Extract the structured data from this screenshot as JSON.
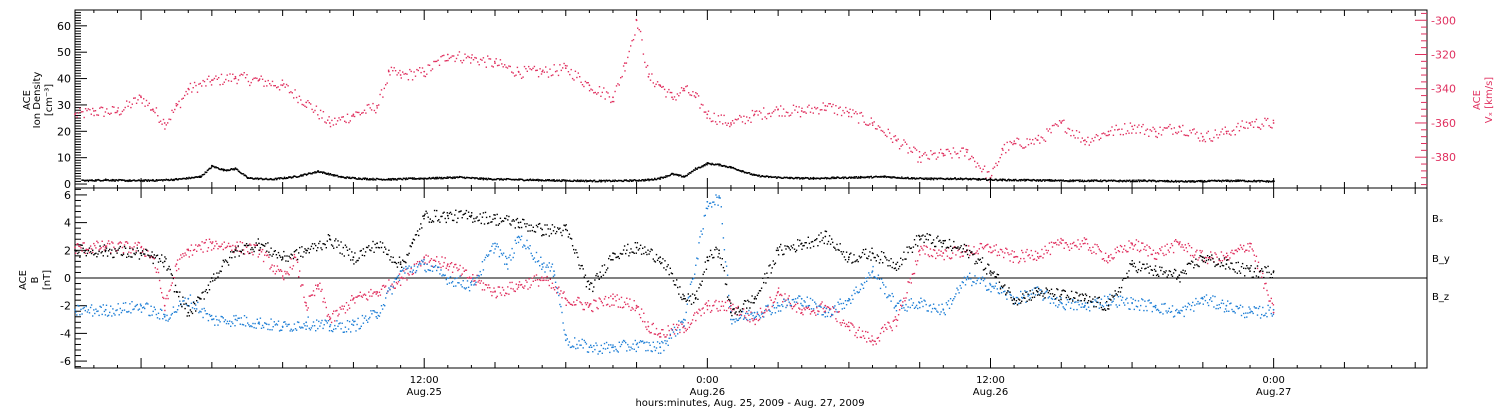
{
  "colors": {
    "black": "#000000",
    "red": "#e0305f",
    "blue": "#1f7fd6"
  },
  "xlabel": "hours:minutes, Aug. 25, 2009 - Aug. 27, 2009",
  "x_ticks": [
    {
      "hour": 12,
      "label1": "12:00",
      "label2": "Aug.25"
    },
    {
      "hour": 24,
      "label1": "0:00",
      "label2": "Aug.26"
    },
    {
      "hour": 36,
      "label1": "12:00",
      "label2": "Aug.26"
    },
    {
      "hour": 48,
      "label1": "0:00",
      "label2": "Aug.27"
    }
  ],
  "chart_data": [
    {
      "type": "scatter",
      "panel": "top",
      "xlim": [
        -2.8,
        54.5
      ],
      "ylim": [
        -1.5,
        66
      ],
      "ylim_right": [
        -398,
        -294
      ],
      "yticks_left": [
        0,
        10,
        20,
        30,
        40,
        50,
        60
      ],
      "yticks_right": [
        -380,
        -360,
        -340,
        -320,
        -300
      ],
      "ylabel_left": {
        "line1": "ACE",
        "line2": "Ion Density",
        "line3": "[cm⁻³]"
      },
      "ylabel_right": {
        "line1": "ACE",
        "line2": "Vₓ [km/s]"
      },
      "series": [
        {
          "name": "Ion Density",
          "color_key": "black",
          "axis": "left",
          "x": [
            -2.5,
            -1.5,
            -0.5,
            0.5,
            1.5,
            2.5,
            3.0,
            3.5,
            4.0,
            4.5,
            5.5,
            6.5,
            7.5,
            8.5,
            9.5,
            10.5,
            11.5,
            12.5,
            13.5,
            14.5,
            15.5,
            16.5,
            17.5,
            18.5,
            19.5,
            20.5,
            21.5,
            22.0,
            22.5,
            23.0,
            23.5,
            24.0,
            24.5,
            25.0,
            25.5,
            26.0,
            26.5,
            27.5,
            28.5,
            29.5,
            30.5,
            31.5,
            32.5,
            33.5,
            34.5,
            35.5,
            36.5,
            37.5,
            38.5,
            39.5,
            40.5,
            41.5,
            42.5,
            43.5,
            44.5,
            45.5,
            46.5,
            47.5,
            48.0
          ],
          "y": [
            1.5,
            1.8,
            1.5,
            1.6,
            2.0,
            3.0,
            7.0,
            5.5,
            6.0,
            2.5,
            2.0,
            3.0,
            5.0,
            2.8,
            2.2,
            2.0,
            2.3,
            2.5,
            2.8,
            2.2,
            2.0,
            1.8,
            1.6,
            1.5,
            1.4,
            1.5,
            1.8,
            2.5,
            4.0,
            3.0,
            6.0,
            8.0,
            7.5,
            6.5,
            5.0,
            3.5,
            3.0,
            2.5,
            2.4,
            2.6,
            2.8,
            3.0,
            2.5,
            2.2,
            2.3,
            2.0,
            1.8,
            1.7,
            1.6,
            1.5,
            1.5,
            1.4,
            1.5,
            1.3,
            1.2,
            1.4,
            1.5,
            1.3,
            1.2
          ]
        },
        {
          "name": "Vx",
          "color_key": "red",
          "axis": "right",
          "x": [
            -2.8,
            -2.0,
            -1.0,
            0.0,
            0.5,
            1.0,
            1.5,
            2.0,
            3.0,
            4.0,
            5.0,
            6.0,
            7.0,
            8.0,
            9.0,
            10.0,
            10.5,
            11.0,
            12.0,
            13.0,
            14.0,
            15.0,
            16.0,
            17.0,
            18.0,
            19.0,
            20.0,
            20.5,
            21.0,
            21.5,
            22.0,
            22.5,
            23.0,
            23.5,
            24.0,
            25.0,
            26.0,
            27.0,
            28.0,
            29.0,
            30.0,
            31.0,
            32.0,
            33.0,
            34.0,
            35.0,
            36.0,
            36.5,
            37.0,
            38.0,
            39.0,
            40.0,
            41.0,
            42.0,
            43.0,
            44.0,
            45.0,
            46.0,
            47.0,
            48.0
          ],
          "y": [
            -355,
            -353,
            -353,
            -345,
            -352,
            -360,
            -350,
            -340,
            -335,
            -333,
            -335,
            -338,
            -348,
            -360,
            -355,
            -350,
            -330,
            -332,
            -330,
            -320,
            -322,
            -325,
            -330,
            -330,
            -328,
            -338,
            -345,
            -325,
            -300,
            -333,
            -338,
            -345,
            -340,
            -345,
            -355,
            -360,
            -355,
            -352,
            -353,
            -350,
            -354,
            -360,
            -370,
            -380,
            -378,
            -377,
            -392,
            -375,
            -372,
            -370,
            -360,
            -370,
            -365,
            -362,
            -365,
            -362,
            -368,
            -365,
            -360,
            -360
          ]
        }
      ]
    },
    {
      "type": "scatter",
      "panel": "bottom",
      "xlim": [
        -2.8,
        54.5
      ],
      "ylim": [
        -6.5,
        6.5
      ],
      "yticks": [
        -6,
        -4,
        -2,
        0,
        2,
        4,
        6
      ],
      "zero_line": true,
      "ylabel": {
        "line1": "ACE",
        "line2": "B",
        "line3": "[nT]"
      },
      "series": [
        {
          "name": "Bₓ",
          "color_key": "black",
          "x": [
            -2.8,
            -1.5,
            0.0,
            0.5,
            1.0,
            1.5,
            2.0,
            2.5,
            3.0,
            4.0,
            5.0,
            6.0,
            7.0,
            8.0,
            9.0,
            10.0,
            11.0,
            11.5,
            12.0,
            13.0,
            14.0,
            15.0,
            16.0,
            17.0,
            18.0,
            19.0,
            20.0,
            21.0,
            22.0,
            23.0,
            23.5,
            24.0,
            24.5,
            25.0,
            26.0,
            27.0,
            28.0,
            29.0,
            30.0,
            31.0,
            32.0,
            33.0,
            34.0,
            35.0,
            36.0,
            37.0,
            38.0,
            39.0,
            40.0,
            41.0,
            42.0,
            43.0,
            44.0,
            45.0,
            46.0,
            47.0,
            48.0
          ],
          "y": [
            2.0,
            2.0,
            1.8,
            1.5,
            1.2,
            -1.0,
            -2.5,
            -1.5,
            0.0,
            2.0,
            2.5,
            1.5,
            2.0,
            2.8,
            1.5,
            2.5,
            1.0,
            2.5,
            4.5,
            4.5,
            4.5,
            4.3,
            4.0,
            3.5,
            3.5,
            -0.8,
            1.8,
            2.2,
            1.5,
            -1.5,
            -1.5,
            1.5,
            2.0,
            -2.5,
            -1.5,
            2.0,
            2.5,
            3.0,
            1.5,
            1.8,
            1.0,
            3.0,
            2.5,
            2.0,
            0.5,
            -1.5,
            -1.0,
            -1.2,
            -1.5,
            -2.0,
            1.0,
            0.5,
            0.2,
            1.5,
            1.0,
            0.5,
            0.5
          ]
        },
        {
          "name": "B_y",
          "color_key": "blue",
          "x": [
            -2.8,
            -1.5,
            0.0,
            1.0,
            2.0,
            3.0,
            4.0,
            5.0,
            6.0,
            7.0,
            8.0,
            9.0,
            10.0,
            11.0,
            12.0,
            13.0,
            14.0,
            15.0,
            15.5,
            16.0,
            17.0,
            17.5,
            18.0,
            19.0,
            20.0,
            21.0,
            22.0,
            23.0,
            24.0,
            24.5,
            25.0,
            26.0,
            27.0,
            28.0,
            29.0,
            30.0,
            31.0,
            32.0,
            33.0,
            34.0,
            35.0,
            36.0,
            37.0,
            38.0,
            39.0,
            40.0,
            41.0,
            42.0,
            43.0,
            44.0,
            45.0,
            46.0,
            47.0,
            48.0
          ],
          "y": [
            -2.3,
            -2.3,
            -2.0,
            -2.8,
            -1.5,
            -3.0,
            -3.0,
            -3.2,
            -3.5,
            -3.2,
            -3.5,
            -3.4,
            -2.5,
            0.5,
            1.0,
            0.0,
            -0.5,
            2.5,
            1.0,
            3.0,
            1.0,
            0.5,
            -4.5,
            -5.0,
            -5.0,
            -4.8,
            -5.0,
            -3.0,
            5.5,
            5.8,
            -3.0,
            -2.5,
            -2.0,
            -1.5,
            -2.5,
            -1.5,
            0.5,
            -2.0,
            -1.8,
            -2.3,
            0.0,
            -0.5,
            -1.5,
            -1.0,
            -1.8,
            -2.0,
            -1.5,
            -1.8,
            -2.0,
            -2.5,
            -1.5,
            -2.0,
            -2.5,
            -2.3
          ]
        },
        {
          "name": "B_z",
          "color_key": "red",
          "x": [
            -2.8,
            -1.5,
            0.0,
            0.5,
            1.0,
            1.5,
            2.0,
            3.0,
            4.0,
            5.0,
            6.0,
            6.5,
            7.0,
            7.5,
            8.0,
            9.0,
            10.0,
            11.0,
            12.0,
            13.0,
            14.0,
            15.0,
            16.0,
            17.0,
            18.0,
            19.0,
            20.0,
            21.0,
            21.5,
            22.0,
            23.0,
            24.0,
            25.0,
            26.0,
            27.0,
            28.0,
            29.0,
            30.0,
            31.0,
            32.0,
            33.0,
            34.0,
            35.0,
            36.0,
            37.0,
            38.0,
            39.0,
            40.0,
            41.0,
            42.0,
            43.0,
            44.0,
            45.0,
            46.0,
            47.0,
            48.0
          ],
          "y": [
            2.2,
            2.3,
            2.2,
            1.5,
            -2.0,
            1.0,
            2.0,
            2.5,
            2.3,
            2.0,
            0.0,
            1.5,
            -2.0,
            -0.5,
            -3.0,
            -1.5,
            -1.0,
            0.0,
            1.5,
            1.0,
            0.0,
            -1.0,
            -0.5,
            0.0,
            -1.5,
            -2.0,
            -1.5,
            -2.0,
            -3.5,
            -4.0,
            -3.5,
            -2.0,
            -2.0,
            -3.0,
            -1.0,
            -2.5,
            -2.0,
            -3.5,
            -4.5,
            -3.0,
            2.0,
            1.8,
            2.0,
            2.2,
            1.5,
            1.8,
            2.5,
            2.5,
            1.5,
            2.5,
            1.8,
            2.5,
            1.5,
            1.5,
            2.5,
            -2.5
          ]
        }
      ]
    }
  ]
}
